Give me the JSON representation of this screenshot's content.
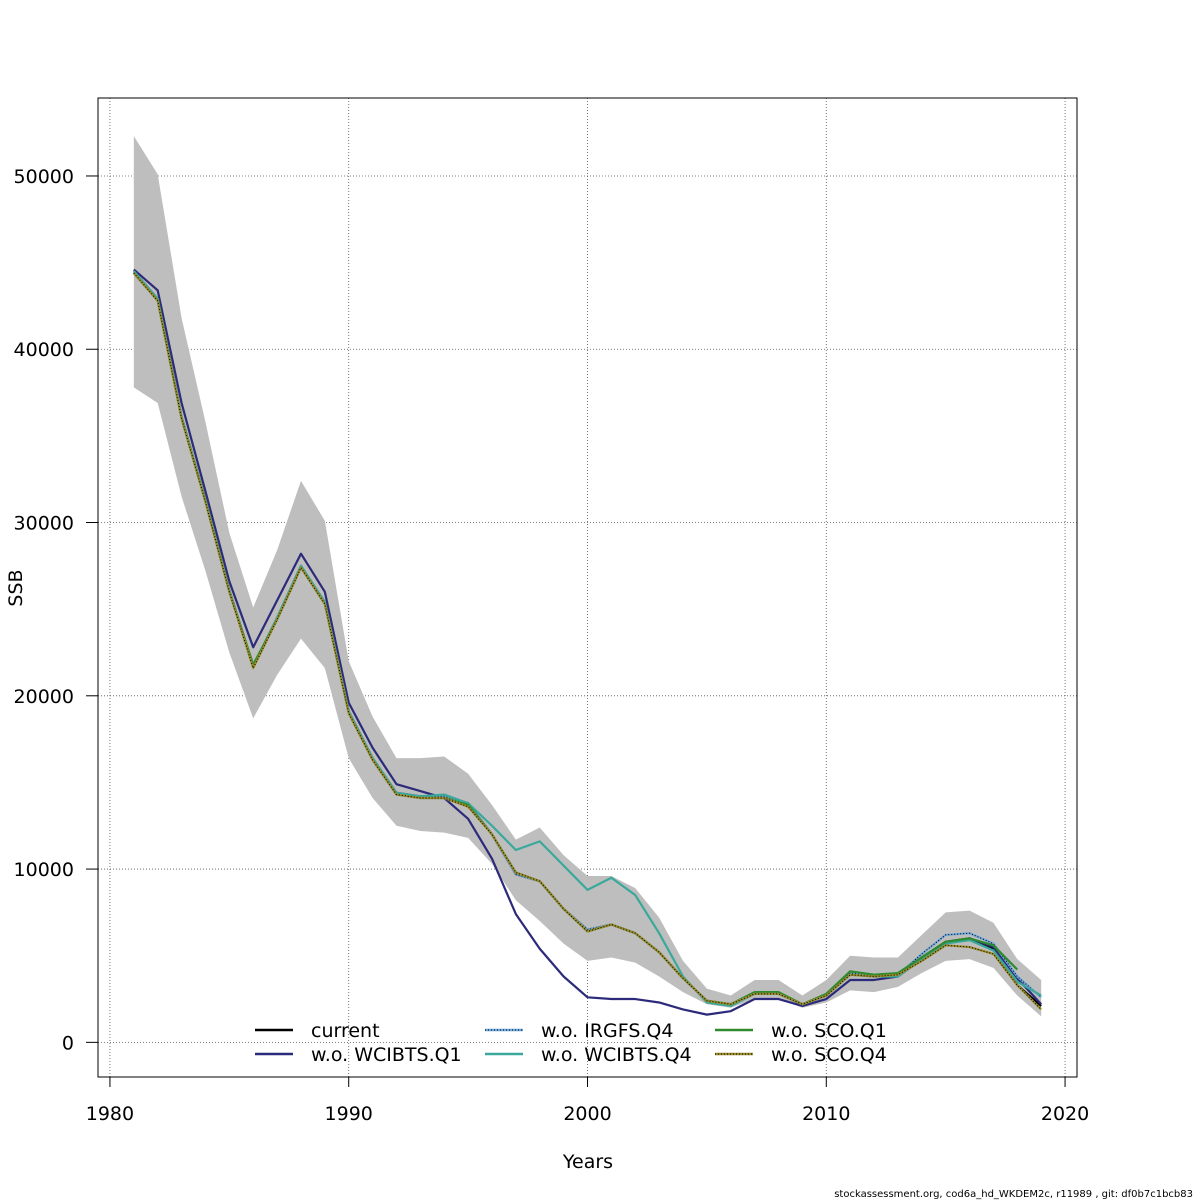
{
  "chart_data": {
    "type": "line",
    "xlabel": "Years",
    "ylabel": "SSB",
    "xlim": [
      1979.5,
      2020.5
    ],
    "ylim": [
      -2000,
      54500
    ],
    "x_ticks": [
      1980,
      1990,
      2000,
      2010,
      2020
    ],
    "y_ticks": [
      0,
      10000,
      20000,
      30000,
      40000,
      50000
    ],
    "grid": true,
    "legend_position": "bottom-center",
    "footer": "stockassessment.org, cod6a_hd_WKDEM2c, r11989 , git: df0b7c1bcb83",
    "band": {
      "x": [
        1981,
        1982,
        1983,
        1984,
        1985,
        1986,
        1987,
        1988,
        1989,
        1990,
        1991,
        1992,
        1993,
        1994,
        1995,
        1996,
        1997,
        1998,
        1999,
        2000,
        2001,
        2002,
        2003,
        2004,
        2005,
        2006,
        2007,
        2008,
        2009,
        2010,
        2011,
        2012,
        2013,
        2014,
        2015,
        2016,
        2017,
        2018,
        2019
      ],
      "lower": [
        37800,
        36900,
        31500,
        27200,
        22500,
        18700,
        21200,
        23300,
        21600,
        16400,
        14100,
        12500,
        12200,
        12100,
        11800,
        10300,
        8200,
        7000,
        5700,
        4700,
        4900,
        4600,
        3800,
        2900,
        2200,
        2000,
        2500,
        2500,
        2000,
        2300,
        3000,
        2900,
        3200,
        4000,
        4700,
        4800,
        4300,
        2700,
        1500
      ],
      "upper": [
        52300,
        50100,
        41800,
        35800,
        29400,
        25100,
        28400,
        32400,
        30100,
        22000,
        18800,
        16400,
        16400,
        16500,
        15500,
        13700,
        11700,
        12400,
        10800,
        9600,
        9600,
        8900,
        7200,
        4700,
        3100,
        2700,
        3600,
        3600,
        2700,
        3600,
        5000,
        4900,
        4900,
        6200,
        7500,
        7600,
        6900,
        4800,
        3600
      ]
    },
    "series": [
      {
        "name": "current",
        "color": "#000000",
        "dotted": false,
        "values": [
          44500,
          42900,
          36100,
          31300,
          26100,
          21700,
          24500,
          27500,
          25400,
          19100,
          16400,
          14400,
          14200,
          14200,
          13800,
          12000,
          9700,
          9300,
          7700,
          6500,
          6800,
          6300,
          5200,
          3700,
          2400,
          2200,
          2800,
          2800,
          2200,
          2700,
          4000,
          3800,
          3900,
          4900,
          5800,
          6000,
          5400,
          3300,
          2100
        ]
      },
      {
        "name": "w.o. WCIBTS.Q1",
        "color": "#2c2a7a",
        "dotted": false,
        "values": [
          44600,
          43400,
          36900,
          31800,
          26600,
          22800,
          25500,
          28200,
          26000,
          19600,
          17000,
          14900,
          14500,
          14100,
          12900,
          10600,
          7400,
          5400,
          3800,
          2600,
          2500,
          2500,
          2300,
          1900,
          1600,
          1800,
          2500,
          2500,
          2100,
          2500,
          3600,
          3600,
          3800,
          4800,
          5700,
          6000,
          5500,
          3700,
          2200
        ]
      },
      {
        "name": "w.o. IRGFS.Q4",
        "color": "#6fa8dc",
        "dotted": true,
        "values": [
          44500,
          42900,
          36100,
          31300,
          26100,
          21700,
          24500,
          27500,
          25400,
          19100,
          16400,
          14400,
          14200,
          14200,
          13800,
          12000,
          9700,
          9300,
          7700,
          6500,
          6800,
          6300,
          5200,
          3700,
          2400,
          2200,
          2800,
          2800,
          2200,
          2700,
          4000,
          3800,
          3900,
          5100,
          6200,
          6300,
          5700,
          3800,
          2600
        ]
      },
      {
        "name": "w.o. WCIBTS.Q4",
        "color": "#3aa89a",
        "dotted": false,
        "values": [
          44500,
          42900,
          36100,
          31300,
          26100,
          21700,
          24500,
          27500,
          25400,
          19100,
          16400,
          14400,
          14200,
          14300,
          13800,
          12500,
          11100,
          11600,
          10200,
          8800,
          9500,
          8500,
          6300,
          3800,
          2300,
          2100,
          2800,
          2800,
          2200,
          2700,
          3900,
          3800,
          3800,
          4800,
          5700,
          5900,
          5300,
          3500,
          2700
        ]
      },
      {
        "name": "w.o. SCO.Q1",
        "color": "#2e8b2e",
        "dotted": false,
        "values": [
          44400,
          42800,
          36000,
          31200,
          26000,
          21800,
          24400,
          27400,
          25300,
          19000,
          16300,
          14300,
          14100,
          14100,
          13700,
          12000,
          9800,
          9300,
          7700,
          6400,
          6800,
          6300,
          5200,
          3700,
          2400,
          2200,
          2900,
          2900,
          2200,
          2800,
          4100,
          3900,
          4000,
          4900,
          5800,
          6000,
          5600,
          4200,
          null
        ]
      },
      {
        "name": "w.o. SCO.Q4",
        "color": "#9b8d2a",
        "dotted": true,
        "values": [
          44400,
          42800,
          36000,
          31200,
          26000,
          21600,
          24400,
          27400,
          25300,
          19000,
          16300,
          14300,
          14100,
          14100,
          13600,
          12000,
          9800,
          9300,
          7700,
          6400,
          6800,
          6300,
          5200,
          3700,
          2400,
          2200,
          2800,
          2800,
          2200,
          2700,
          3900,
          3800,
          3900,
          4700,
          5600,
          5500,
          5100,
          3300,
          1900
        ]
      }
    ]
  }
}
